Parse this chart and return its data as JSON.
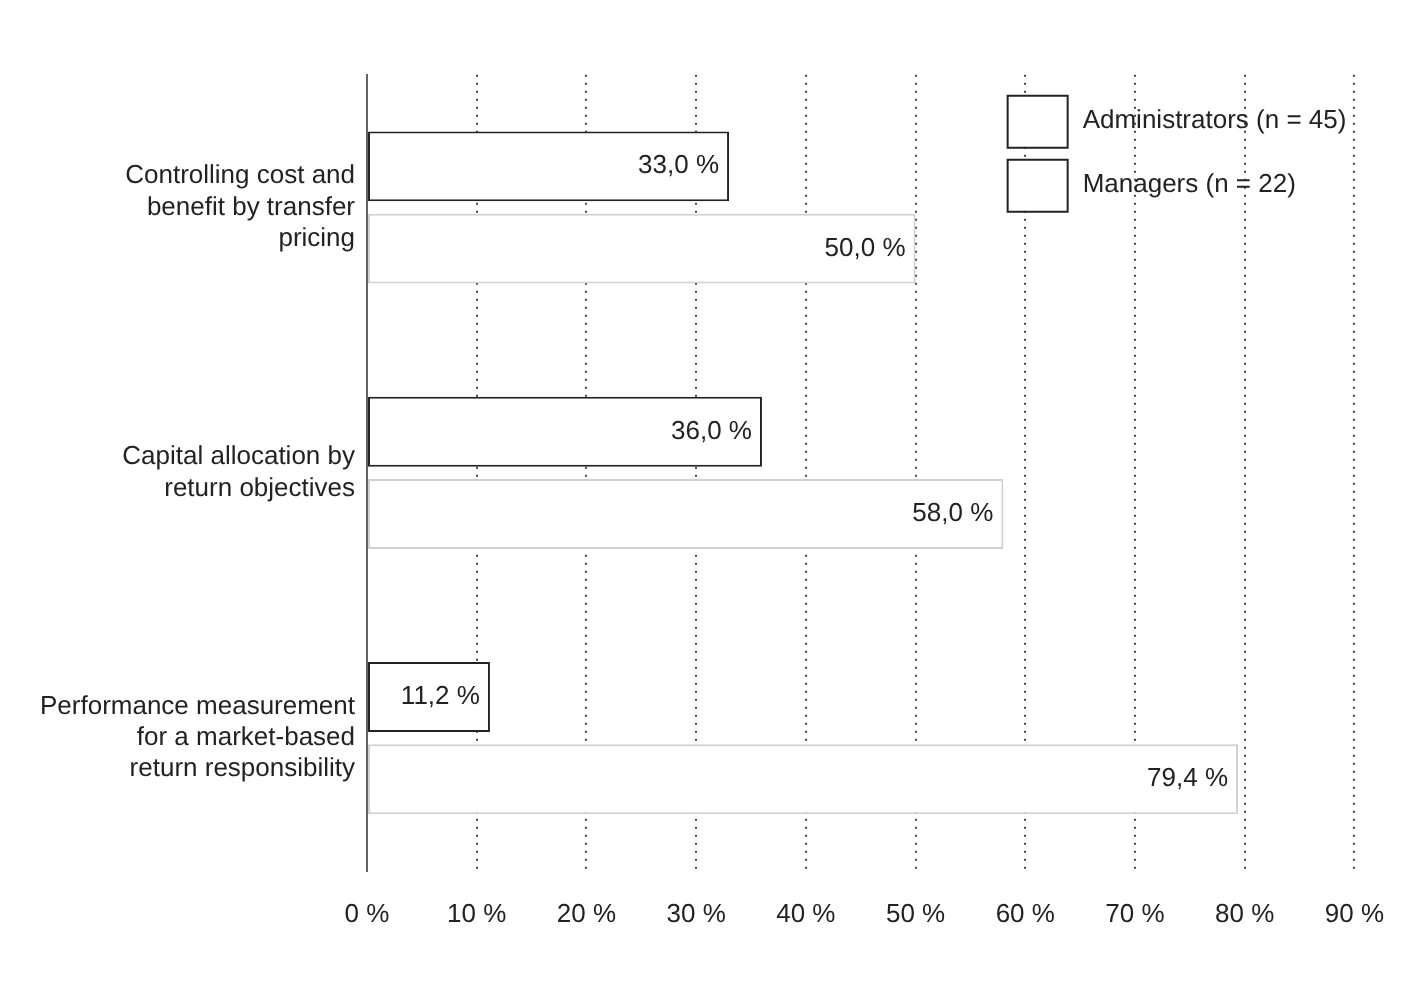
{
  "chart_data": {
    "type": "bar",
    "orientation": "horizontal",
    "categories": [
      "Controlling cost and benefit by transfer pricing",
      "Capital allocation by return objectives",
      "Performance measurement for a market-based return responsibility"
    ],
    "series": [
      {
        "name": "Administrators (n = 45)",
        "color": "#ffffff",
        "values": [
          33.0,
          36.0,
          11.2
        ],
        "value_labels": [
          "33,0 %",
          "36,0 %",
          "11,2 %"
        ]
      },
      {
        "name": "Managers (n = 22)",
        "color": "#ffffff",
        "values": [
          50.0,
          58.0,
          79.4
        ],
        "value_labels": [
          "50,0 %",
          "58,0 %",
          "79,4 %"
        ]
      }
    ],
    "xlim": [
      0,
      90
    ],
    "xticks": [
      {
        "value": 0,
        "label": "0 %"
      },
      {
        "value": 10,
        "label": "10 %"
      },
      {
        "value": 20,
        "label": "20 %"
      },
      {
        "value": 30,
        "label": "30 %"
      },
      {
        "value": 40,
        "label": "40 %"
      },
      {
        "value": 50,
        "label": "50 %"
      },
      {
        "value": 60,
        "label": "60 %"
      },
      {
        "value": 70,
        "label": "70 %"
      },
      {
        "value": 80,
        "label": "80 %"
      },
      {
        "value": 90,
        "label": "90 %"
      }
    ],
    "grid": "x",
    "legend": "top right"
  }
}
